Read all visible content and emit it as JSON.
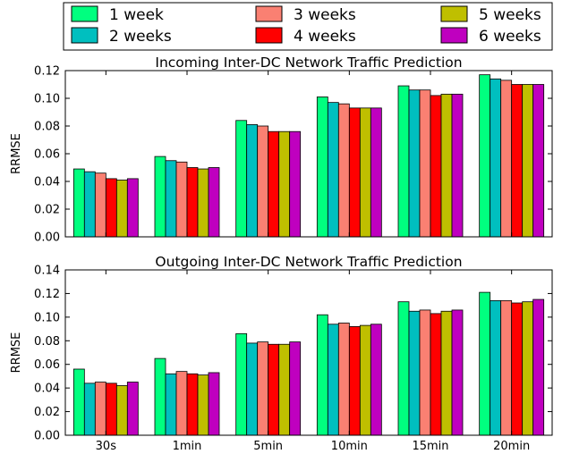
{
  "legend": {
    "entries": [
      {
        "label": "1 week",
        "color": "#00ff7f"
      },
      {
        "label": "2 weeks",
        "color": "#00bfbf"
      },
      {
        "label": "3 weeks",
        "color": "#fa8072"
      },
      {
        "label": "4 weeks",
        "color": "#ff0000"
      },
      {
        "label": "5 weeks",
        "color": "#bfbf00"
      },
      {
        "label": "6 weeks",
        "color": "#bf00bf"
      }
    ],
    "placement": "top"
  },
  "chart_data": [
    {
      "type": "bar",
      "title": "Incoming Inter-DC Network Traffic Prediction",
      "xlabel": "",
      "ylabel": "RRMSE",
      "ylim": [
        0,
        0.12
      ],
      "yticks": [
        "0.00",
        "0.02",
        "0.04",
        "0.06",
        "0.08",
        "0.10",
        "0.12"
      ],
      "categories": [
        "30s",
        "1min",
        "5min",
        "10min",
        "15min",
        "20min"
      ],
      "show_xticklabels": false,
      "grid": false,
      "series": [
        {
          "name": "1 week",
          "values": [
            0.049,
            0.058,
            0.084,
            0.101,
            0.109,
            0.117
          ]
        },
        {
          "name": "2 weeks",
          "values": [
            0.047,
            0.055,
            0.081,
            0.097,
            0.106,
            0.114
          ]
        },
        {
          "name": "3 weeks",
          "values": [
            0.046,
            0.054,
            0.08,
            0.096,
            0.106,
            0.113
          ]
        },
        {
          "name": "4 weeks",
          "values": [
            0.042,
            0.05,
            0.076,
            0.093,
            0.102,
            0.11
          ]
        },
        {
          "name": "5 weeks",
          "values": [
            0.041,
            0.049,
            0.076,
            0.093,
            0.103,
            0.11
          ]
        },
        {
          "name": "6 weeks",
          "values": [
            0.042,
            0.05,
            0.076,
            0.093,
            0.103,
            0.11
          ]
        }
      ]
    },
    {
      "type": "bar",
      "title": "Outgoing Inter-DC Network Traffic Prediction",
      "xlabel": "",
      "ylabel": "RRMSE",
      "ylim": [
        0,
        0.14
      ],
      "yticks": [
        "0.00",
        "0.02",
        "0.04",
        "0.06",
        "0.08",
        "0.10",
        "0.12",
        "0.14"
      ],
      "categories": [
        "30s",
        "1min",
        "5min",
        "10min",
        "15min",
        "20min"
      ],
      "show_xticklabels": true,
      "grid": false,
      "series": [
        {
          "name": "1 week",
          "values": [
            0.056,
            0.065,
            0.086,
            0.102,
            0.113,
            0.121
          ]
        },
        {
          "name": "2 weeks",
          "values": [
            0.044,
            0.052,
            0.078,
            0.094,
            0.105,
            0.114
          ]
        },
        {
          "name": "3 weeks",
          "values": [
            0.045,
            0.054,
            0.079,
            0.095,
            0.106,
            0.114
          ]
        },
        {
          "name": "4 weeks",
          "values": [
            0.044,
            0.052,
            0.077,
            0.092,
            0.103,
            0.112
          ]
        },
        {
          "name": "5 weeks",
          "values": [
            0.042,
            0.051,
            0.077,
            0.093,
            0.105,
            0.113
          ]
        },
        {
          "name": "6 weeks",
          "values": [
            0.045,
            0.053,
            0.079,
            0.094,
            0.106,
            0.115
          ]
        }
      ]
    }
  ]
}
